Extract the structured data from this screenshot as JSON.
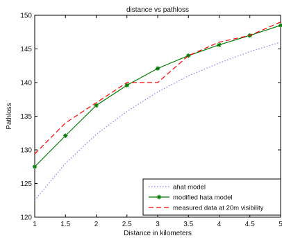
{
  "chart_data": {
    "type": "line",
    "title": "distance vs pathloss",
    "xlabel": "Distance in kilometers",
    "ylabel": "Pathloss",
    "xlim": [
      1,
      5
    ],
    "ylim": [
      120,
      150
    ],
    "x_ticks": [
      1,
      1.5,
      2,
      2.5,
      3,
      3.5,
      4,
      4.5,
      5
    ],
    "x_tick_labels": [
      "1",
      "1.5",
      "2",
      "2.5",
      "3",
      "3.5",
      "4",
      "4.5",
      "5"
    ],
    "y_ticks": [
      120,
      125,
      130,
      135,
      140,
      145,
      150
    ],
    "y_tick_labels": [
      "120",
      "125",
      "130",
      "135",
      "140",
      "145",
      "150"
    ],
    "grid": false,
    "legend_position": "bottom-right",
    "x": [
      1,
      1.5,
      2,
      2.5,
      3,
      3.5,
      4,
      4.5,
      5
    ],
    "series": [
      {
        "name": "ahat model",
        "color": "#7f7fff",
        "style": "dotted",
        "marker": "none",
        "values": [
          122.5,
          128.0,
          132.3,
          135.7,
          138.6,
          141.0,
          142.9,
          144.6,
          146.0
        ]
      },
      {
        "name": "modified hata model",
        "color": "#007a00",
        "style": "solid",
        "marker": "star",
        "values": [
          127.5,
          132.1,
          136.6,
          139.6,
          142.1,
          144.0,
          145.6,
          147.0,
          148.5
        ]
      },
      {
        "name": "measured data at 20m visibility",
        "color": "#ff0000",
        "style": "dashed",
        "marker": "none",
        "values": [
          129.4,
          134.0,
          137.0,
          140.0,
          140.0,
          144.0,
          146.0,
          147.0,
          149.0
        ]
      }
    ]
  }
}
